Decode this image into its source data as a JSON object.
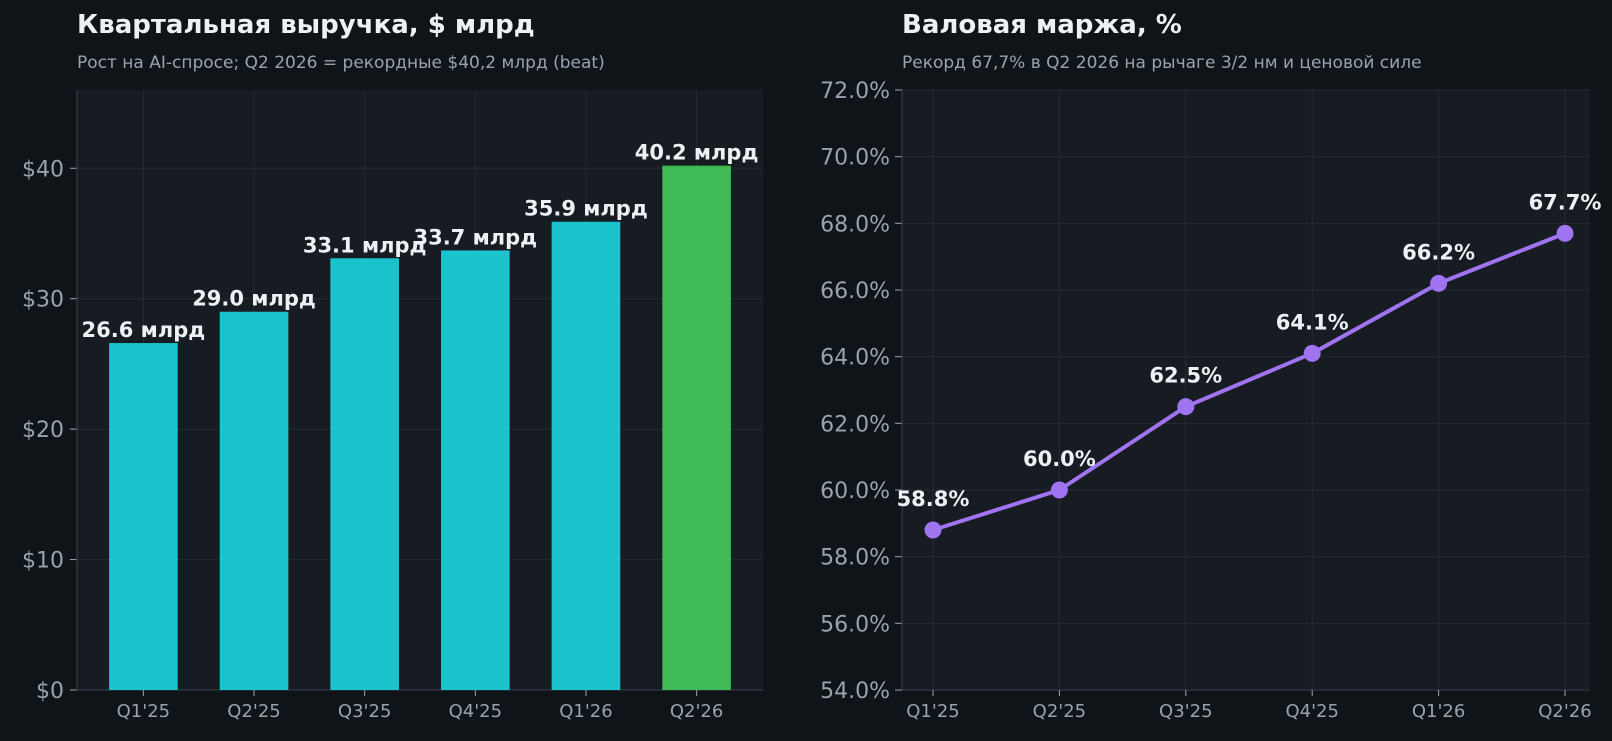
{
  "colors": {
    "background": "#0f1418",
    "plot_bg": "#171b22",
    "grid": "#262c34",
    "bar": "#1bc4cc",
    "bar_highlight": "#3fba55",
    "line": "#a073f0",
    "label": "#eef1f4",
    "tick": "#9aa3ad"
  },
  "chart_data": [
    {
      "type": "bar",
      "title": "Квартальная выручка, $ млрд",
      "subtitle": "Рост на AI-спросе; Q2 2026 = рекордные $40,2 млрд (beat)",
      "categories": [
        "Q1'25",
        "Q2'25",
        "Q3'25",
        "Q4'25",
        "Q1'26",
        "Q2'26"
      ],
      "values": [
        26.6,
        29.0,
        33.1,
        33.7,
        35.9,
        40.2
      ],
      "data_labels": [
        "26.6 млрд",
        "29.0 млрд",
        "33.1 млрд",
        "33.7 млрд",
        "35.9 млрд",
        "40.2 млрд"
      ],
      "highlight_index": 5,
      "ylim": [
        0,
        46
      ],
      "yticks": [
        0,
        10,
        20,
        30,
        40
      ],
      "ytick_labels": [
        "$0",
        "$10",
        "$20",
        "$30",
        "$40"
      ],
      "grid": true
    },
    {
      "type": "line",
      "title": "Валовая маржа, %",
      "subtitle": "Рекорд 67,7% в Q2 2026 на рычаге 3/2 нм и ценовой силе",
      "categories": [
        "Q1'25",
        "Q2'25",
        "Q3'25",
        "Q4'25",
        "Q1'26",
        "Q2'26"
      ],
      "values": [
        58.8,
        60.0,
        62.5,
        64.1,
        66.2,
        67.7
      ],
      "data_labels": [
        "58.8%",
        "60.0%",
        "62.5%",
        "64.1%",
        "66.2%",
        "67.7%"
      ],
      "ylim": [
        54,
        72
      ],
      "yticks": [
        54,
        56,
        58,
        60,
        62,
        64,
        66,
        68,
        70,
        72
      ],
      "ytick_labels": [
        "54.0%",
        "56.0%",
        "58.0%",
        "60.0%",
        "62.0%",
        "64.0%",
        "66.0%",
        "68.0%",
        "70.0%",
        "72.0%"
      ],
      "grid": true
    }
  ]
}
